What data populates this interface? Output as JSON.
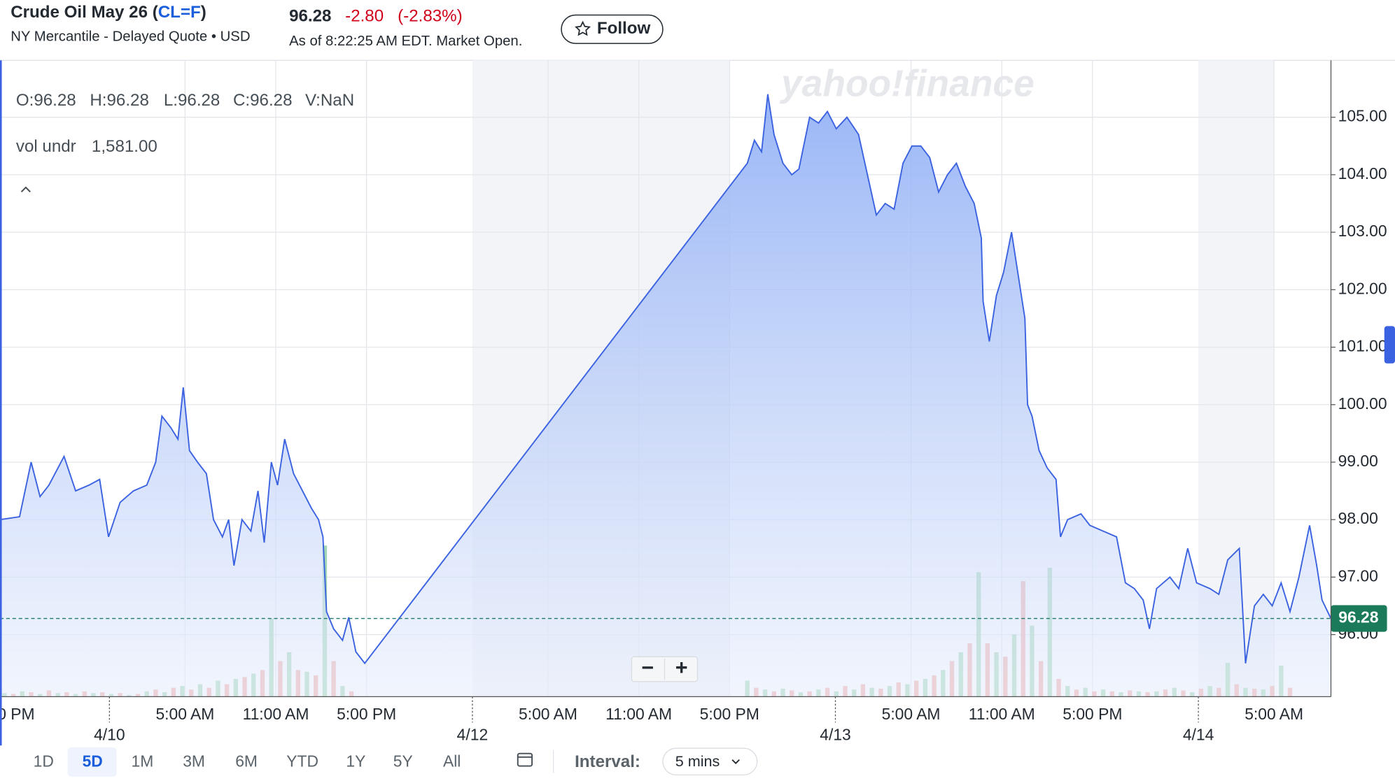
{
  "header": {
    "title_prefix": "Crude Oil May 26 (",
    "symbol": "CL=F",
    "title_suffix": ")",
    "subtitle": "NY Mercantile - Delayed Quote • USD",
    "price": "96.28",
    "change": "-2.80",
    "change_percent": "(-2.83%)",
    "as_of": "As of 8:22:25 AM EDT. Market Open.",
    "follow": "Follow"
  },
  "ohlc": [
    "O:96.28",
    "H:96.28",
    "L:96.28",
    "C:96.28",
    "V:NaN"
  ],
  "indicator": {
    "name": "vol undr",
    "value": "1,581.00"
  },
  "watermark": "yahoo!finance",
  "zoom": [
    "−",
    "+"
  ],
  "ranges": [
    "1D",
    "5D",
    "1M",
    "3M",
    "6M",
    "YTD",
    "1Y",
    "5Y",
    "All"
  ],
  "selected_range": "5D",
  "interval": {
    "label": "Interval:",
    "value": "5 mins"
  },
  "chart_data": {
    "type": "line",
    "ylim": [
      94.92,
      105.99
    ],
    "yticks": [
      {
        "value": 96,
        "label": "96.00"
      },
      {
        "value": 97,
        "label": "97.00"
      },
      {
        "value": 98,
        "label": "98.00"
      },
      {
        "value": 99,
        "label": "99.00"
      },
      {
        "value": 100,
        "label": "100.00"
      },
      {
        "value": 101,
        "label": "101.00"
      },
      {
        "value": 102,
        "label": "102.00"
      },
      {
        "value": 103,
        "label": "103.00"
      },
      {
        "value": 104,
        "label": "104.00"
      },
      {
        "value": 105,
        "label": "105.00"
      }
    ],
    "time_ticks": [
      "0 PM",
      "5:00 AM",
      "11:00 AM",
      "5:00 PM",
      "5:00 AM",
      "11:00 AM",
      "5:00 PM",
      "5:00 AM",
      "11:00 AM",
      "5:00 PM",
      "5:00 AM"
    ],
    "date_ticks": [
      "4/10",
      "4/12",
      "4/13",
      "4/14"
    ],
    "grid": true,
    "last_price": 96.28,
    "last_price_label": "96.28",
    "series": [
      {
        "name": "CL=F",
        "color": "#3b62e0",
        "values": [
          98.0,
          98.05,
          99.0,
          98.4,
          98.6,
          99.1,
          98.5,
          98.6,
          98.7,
          97.7,
          98.3,
          98.5,
          98.6,
          99.0,
          99.8,
          99.6,
          99.4,
          100.3,
          99.2,
          99.0,
          98.8,
          98.0,
          97.7,
          98.0,
          97.2,
          98.0,
          97.8,
          98.5,
          97.6,
          99.0,
          98.6,
          99.4,
          98.8,
          98.5,
          98.2,
          98.0,
          97.7,
          96.4,
          96.1,
          95.9,
          96.3,
          95.7,
          95.5,
          104.2,
          104.6,
          104.4,
          105.4,
          104.7,
          104.2,
          104.0,
          104.1,
          105.0,
          104.9,
          105.1,
          104.8,
          105.0,
          104.7,
          104.0,
          103.3,
          103.5,
          103.4,
          104.2,
          104.5,
          104.5,
          104.3,
          103.7,
          104.0,
          104.2,
          103.8,
          103.5,
          102.9,
          101.8,
          101.1,
          101.9,
          102.3,
          103.0,
          102.2,
          101.5,
          100.0,
          99.8,
          99.2,
          98.9,
          98.7,
          97.7,
          98.0,
          98.1,
          97.9,
          97.8,
          97.7,
          96.9,
          96.8,
          96.6,
          96.1,
          96.8,
          97.0,
          96.8,
          97.5,
          96.9,
          96.8,
          96.7,
          97.3,
          97.5,
          95.5,
          96.5,
          96.7,
          96.5,
          96.9,
          96.4,
          97.0,
          97.9,
          97.2,
          96.6,
          96.28
        ]
      },
      {
        "name": "Volume",
        "color": "#8fd0a4",
        "values": [
          4,
          3,
          6,
          5,
          3,
          7,
          4,
          5,
          3,
          6,
          4,
          5,
          3,
          4,
          2,
          3,
          6,
          8,
          5,
          10,
          12,
          8,
          14,
          10,
          18,
          14,
          20,
          22,
          26,
          30,
          88,
          40,
          50,
          30,
          28,
          24,
          170,
          40,
          12,
          6,
          18,
          10,
          8,
          6,
          9,
          7,
          5,
          6,
          8,
          10,
          6,
          12,
          8,
          14,
          10,
          9,
          12,
          16,
          14,
          18,
          20,
          24,
          30,
          40,
          50,
          60,
          140,
          60,
          50,
          45,
          70,
          130,
          80,
          40,
          145,
          20,
          12,
          8,
          10,
          6,
          8,
          6,
          5,
          7,
          6,
          5,
          6,
          8,
          10,
          7,
          5,
          9,
          12,
          10,
          38,
          14,
          10,
          9,
          8,
          12,
          35,
          10
        ]
      }
    ]
  }
}
